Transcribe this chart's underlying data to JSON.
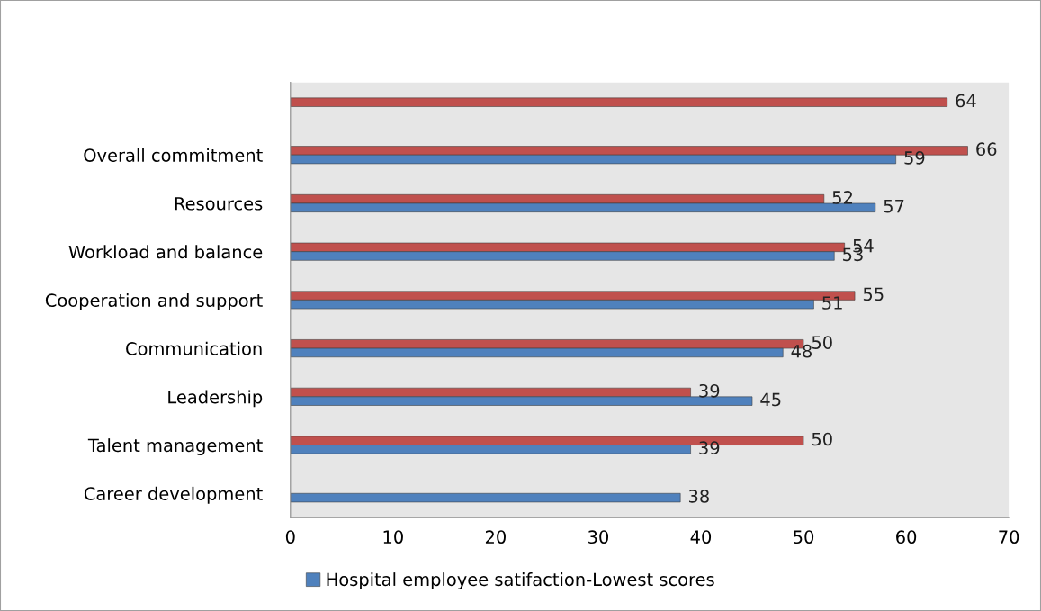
{
  "chart_data": {
    "type": "bar",
    "orientation": "horizontal",
    "categories": [
      null,
      "Overall commitment",
      "Resources",
      "Workload and balance",
      "Cooperation and support",
      "Communication",
      "Leadership",
      "Talent management",
      "Career development"
    ],
    "series": [
      {
        "color": "#c0504d",
        "values": [
          64,
          66,
          52,
          54,
          55,
          50,
          39,
          50,
          null
        ]
      },
      {
        "name": "Hospital employee satifaction-Lowest scores",
        "color": "#4f81bd",
        "values": [
          null,
          59,
          57,
          53,
          51,
          48,
          45,
          39,
          38
        ]
      }
    ],
    "xlim": [
      0,
      70
    ],
    "xticks": [
      0,
      10,
      20,
      30,
      40,
      50,
      60,
      70
    ],
    "data_labels": true,
    "grid": false,
    "legend": "bottom"
  }
}
